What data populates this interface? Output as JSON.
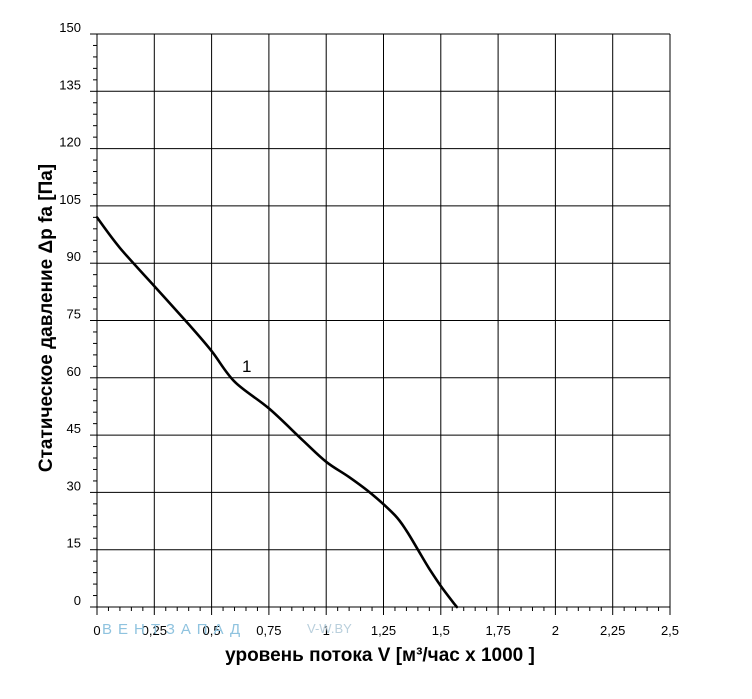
{
  "chart_data": {
    "type": "line",
    "xlabel": "уровень потока  V [м³/час x 1000 ]",
    "ylabel": "Статическое давление  Δp fa [Па]",
    "xlim": [
      0,
      2.5
    ],
    "ylim": [
      0,
      150
    ],
    "x_ticks": [
      "0",
      "0,25",
      "0,5",
      "0,75",
      "1",
      "1,25",
      "1,5",
      "1,75",
      "2",
      "2,25",
      "2,5"
    ],
    "y_ticks": [
      "0",
      "15",
      "30",
      "45",
      "60",
      "75",
      "90",
      "105",
      "120",
      "135",
      "150"
    ],
    "grid": true,
    "series": [
      {
        "name": "1",
        "x": [
          0,
          0.1,
          0.25,
          0.4,
          0.5,
          0.6,
          0.75,
          0.9,
          1.0,
          1.1,
          1.2,
          1.3,
          1.35,
          1.4,
          1.45,
          1.5,
          1.55,
          1.57
        ],
        "y": [
          102,
          94,
          84,
          74,
          67,
          59,
          52,
          43.5,
          38,
          34,
          29.5,
          24,
          20,
          15,
          10,
          5.5,
          1.5,
          0
        ]
      }
    ],
    "color": "#000000"
  },
  "watermark": {
    "brand": "ВЕНТЗАПАД",
    "site": "V-W.BY"
  }
}
